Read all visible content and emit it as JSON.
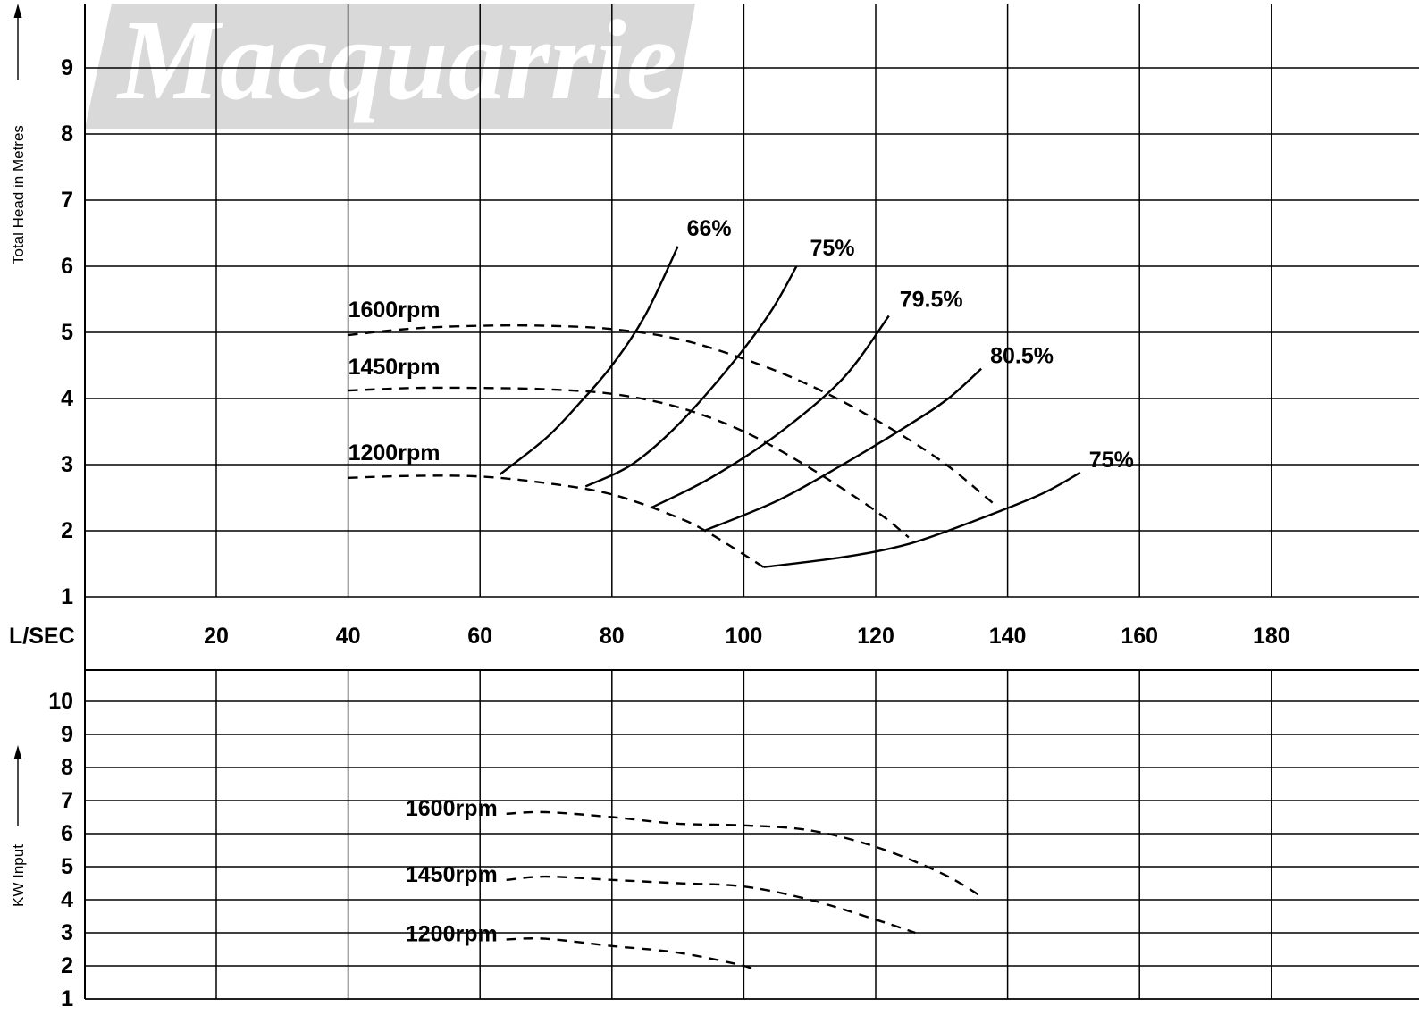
{
  "watermark": "Macquarrie",
  "colors": {
    "line": "#000000",
    "grid": "#000000",
    "watermark_band": "#d9d9d9",
    "background": "#ffffff"
  },
  "x_axis": {
    "label": "L/SEC",
    "ticks": [
      20,
      40,
      60,
      80,
      100,
      120,
      140,
      160,
      180
    ]
  },
  "chart_data": [
    {
      "type": "line",
      "title": "",
      "ylabel": "Total Head in Metres",
      "xlabel": "L/SEC",
      "xlim": [
        0,
        200
      ],
      "ylim": [
        0,
        10
      ],
      "yticks": [
        1,
        2,
        3,
        4,
        5,
        6,
        7,
        8,
        9
      ],
      "grid": true,
      "series": [
        {
          "name": "1600rpm",
          "style": "dashed",
          "x": [
            40,
            50,
            60,
            70,
            80,
            90,
            100,
            110,
            120,
            130,
            138
          ],
          "y": [
            4.96,
            5.06,
            5.1,
            5.1,
            5.05,
            4.9,
            4.6,
            4.2,
            3.68,
            3.05,
            2.4
          ]
        },
        {
          "name": "1450rpm",
          "style": "dashed",
          "x": [
            40,
            50,
            60,
            70,
            80,
            90,
            100,
            110,
            120,
            125
          ],
          "y": [
            4.12,
            4.16,
            4.16,
            4.14,
            4.07,
            3.87,
            3.5,
            2.95,
            2.3,
            1.9
          ]
        },
        {
          "name": "1200rpm",
          "style": "dashed",
          "x": [
            40,
            50,
            60,
            70,
            80,
            90,
            95,
            103
          ],
          "y": [
            2.8,
            2.83,
            2.82,
            2.72,
            2.55,
            2.2,
            1.95,
            1.45
          ]
        },
        {
          "name": "66%",
          "style": "solid",
          "x": [
            63,
            70,
            75,
            80,
            85,
            90
          ],
          "y": [
            2.85,
            3.4,
            3.92,
            4.5,
            5.25,
            6.3
          ]
        },
        {
          "name": "75%",
          "style": "solid",
          "x": [
            76,
            83,
            90,
            98,
            104,
            108
          ],
          "y": [
            2.67,
            3.0,
            3.6,
            4.5,
            5.3,
            6.0
          ]
        },
        {
          "name": "79.5%",
          "style": "solid",
          "x": [
            86,
            95,
            105,
            115,
            122
          ],
          "y": [
            2.35,
            2.8,
            3.45,
            4.3,
            5.25
          ]
        },
        {
          "name": "80.5%",
          "style": "solid",
          "x": [
            94,
            105,
            115,
            125,
            131,
            136
          ],
          "y": [
            2.0,
            2.45,
            3.0,
            3.6,
            4.0,
            4.45
          ]
        },
        {
          "name": "75%",
          "style": "solid",
          "x": [
            103,
            115,
            125,
            135,
            145,
            151
          ],
          "y": [
            1.45,
            1.6,
            1.8,
            2.15,
            2.55,
            2.88
          ]
        }
      ]
    },
    {
      "type": "line",
      "title": "",
      "ylabel": "KW Input",
      "xlabel": "L/SEC",
      "xlim": [
        0,
        200
      ],
      "ylim": [
        1,
        11
      ],
      "yticks": [
        1,
        2,
        3,
        4,
        5,
        6,
        7,
        8,
        9,
        10
      ],
      "grid": true,
      "series": [
        {
          "name": "1600rpm",
          "style": "dashed",
          "x": [
            64,
            70,
            80,
            90,
            100,
            110,
            120,
            130,
            136
          ],
          "y": [
            6.6,
            6.65,
            6.5,
            6.3,
            6.25,
            6.1,
            5.6,
            4.8,
            4.1
          ]
        },
        {
          "name": "1450rpm",
          "style": "dashed",
          "x": [
            64,
            70,
            80,
            90,
            100,
            110,
            120,
            126
          ],
          "y": [
            4.6,
            4.7,
            4.6,
            4.5,
            4.4,
            4.0,
            3.4,
            3.0
          ]
        },
        {
          "name": "1200rpm",
          "style": "dashed",
          "x": [
            64,
            70,
            80,
            90,
            100,
            102
          ],
          "y": [
            2.8,
            2.82,
            2.6,
            2.4,
            2.0,
            1.8
          ]
        }
      ]
    }
  ]
}
